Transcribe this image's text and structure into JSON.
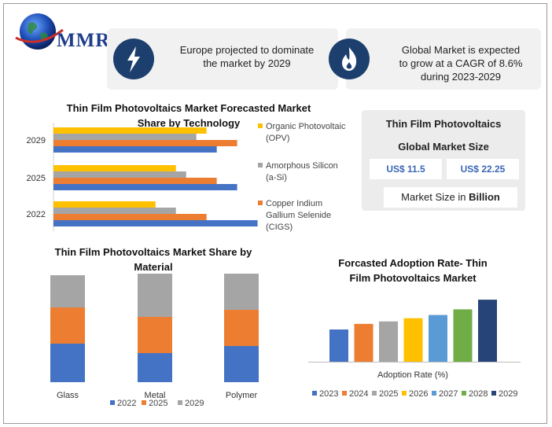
{
  "logo": {
    "text": "MMR"
  },
  "cards": [
    {
      "icon": "lightning-icon",
      "lines": [
        "Europe projected to dominate",
        "the market by 2029"
      ]
    },
    {
      "icon": "flame-icon",
      "lines": [
        "Global Market is expected",
        "to grow at a CAGR of 8.6%",
        "during 2023-2029"
      ]
    }
  ],
  "market_size": {
    "title_line1": "Thin Film Photovoltaics",
    "title_line2": "Global Market Size",
    "value_2022": "US$ 11.5",
    "value_2029": "US$ 22.25",
    "unit_prefix": "Market Size in ",
    "unit_bold": "Billion"
  },
  "colors": {
    "blue": "#4472C4",
    "orange": "#ED7D31",
    "gray": "#A5A5A5",
    "yellow": "#FFC000",
    "light_blue": "#5B9BD5",
    "green": "#70AD47",
    "navy": "#264478",
    "icon_bg": "#1d3f6e"
  },
  "chart_data": [
    {
      "type": "bar",
      "orientation": "horizontal",
      "title_lines": [
        "Thin Film Photovoltaics Market Forecasted Market",
        "Share by Technology"
      ],
      "categories": [
        "2029",
        "2025",
        "2022"
      ],
      "series": [
        {
          "name": "Organic Photovoltaic (OPV)",
          "name_lines": [
            "Organic Photovoltaic",
            "(OPV)"
          ],
          "color": "#FFC000",
          "values": [
            30,
            24,
            20
          ]
        },
        {
          "name": "Amorphous Silicon (a-Si)",
          "name_lines": [
            "Amorphous Silicon",
            "(a-Si)"
          ],
          "color": "#A5A5A5",
          "values": [
            28,
            26,
            24
          ]
        },
        {
          "name": "Copper Indium Gallium Selenide (CIGS)",
          "name_lines": [
            "Copper Indium",
            "Gallium Selenide",
            "(CIGS)"
          ],
          "color": "#ED7D31",
          "values": [
            36,
            32,
            30
          ]
        },
        {
          "name": "",
          "name_lines": [],
          "color": "#4472C4",
          "values": [
            32,
            36,
            40
          ]
        }
      ],
      "xlim": [
        0,
        45
      ],
      "legend": "right"
    },
    {
      "type": "bar",
      "stacked": true,
      "title_lines": [
        "Thin Film Photovoltaics Market Share by",
        "Material"
      ],
      "categories": [
        "Glass",
        "Metal",
        "Polymer"
      ],
      "series": [
        {
          "name": "2022",
          "color": "#4472C4",
          "values": [
            49,
            37,
            46
          ]
        },
        {
          "name": "2025",
          "color": "#ED7D31",
          "values": [
            46,
            46,
            46
          ]
        },
        {
          "name": "2029",
          "color": "#A5A5A5",
          "values": [
            41,
            55,
            46
          ]
        }
      ],
      "ylim": [
        0,
        136
      ],
      "legend": "bottom"
    },
    {
      "type": "bar",
      "title_lines": [
        "Forcasted Adoption Rate- Thin",
        "Film Photovoltaics Market"
      ],
      "xlabel": "Adoption Rate (%)",
      "categories": [
        "2023",
        "2024",
        "2025",
        "2026",
        "2027",
        "2028",
        "2029"
      ],
      "colors": [
        "#4472C4",
        "#ED7D31",
        "#A5A5A5",
        "#FFC000",
        "#5B9BD5",
        "#70AD47",
        "#264478"
      ],
      "values": [
        40,
        47,
        50,
        54,
        58,
        65,
        77
      ],
      "ylim": [
        0,
        80
      ],
      "legend": "bottom"
    }
  ]
}
